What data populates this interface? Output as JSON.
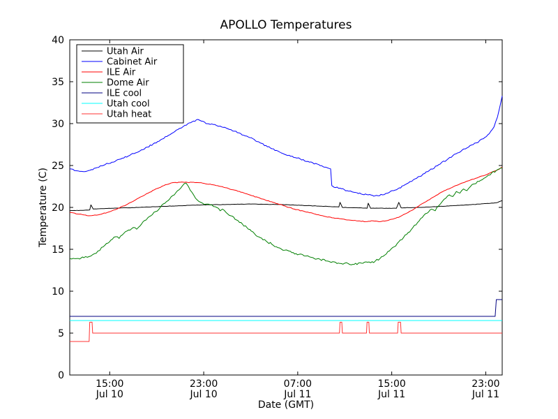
{
  "figure": {
    "title": "APOLLO Temperatures",
    "xlabel": "Date (GMT)",
    "ylabel": "Temperature (C)"
  },
  "chart_data": {
    "type": "line",
    "title": "APOLLO Temperatures",
    "xlabel": "Date (GMT)",
    "ylabel": "Temperature (C)",
    "x_unit": "hours since Jul 10 00:00 GMT",
    "xlim": [
      11.6,
      48.4
    ],
    "ylim": [
      0,
      40
    ],
    "yticks": [
      0,
      5,
      10,
      15,
      20,
      25,
      30,
      35,
      40
    ],
    "xticks": [
      {
        "value": 15,
        "label_time": "15:00",
        "label_date": "Jul 10"
      },
      {
        "value": 23,
        "label_time": "23:00",
        "label_date": "Jul 10"
      },
      {
        "value": 31,
        "label_time": "07:00",
        "label_date": "Jul 11"
      },
      {
        "value": 39,
        "label_time": "15:00",
        "label_date": "Jul 11"
      },
      {
        "value": 47,
        "label_time": "23:00",
        "label_date": "Jul 11"
      }
    ],
    "grid": false,
    "legend_position": "upper left",
    "series": [
      {
        "name": "Utah Air",
        "color": "#000000",
        "noise": 0.02,
        "points": [
          [
            11.6,
            19.6
          ],
          [
            12.6,
            19.65
          ],
          [
            13.3,
            19.7
          ],
          [
            13.4,
            20.3
          ],
          [
            13.6,
            19.8
          ],
          [
            14.4,
            19.85
          ],
          [
            15.2,
            19.9
          ],
          [
            17.5,
            20.0
          ],
          [
            20.0,
            20.15
          ],
          [
            22.9,
            20.3
          ],
          [
            25.0,
            20.35
          ],
          [
            27.0,
            20.4
          ],
          [
            29.4,
            20.35
          ],
          [
            31.2,
            20.25
          ],
          [
            33.0,
            20.15
          ],
          [
            34.5,
            20.05
          ],
          [
            34.6,
            20.6
          ],
          [
            34.8,
            20.0
          ],
          [
            36.4,
            19.95
          ],
          [
            36.9,
            19.9
          ],
          [
            37.0,
            20.5
          ],
          [
            37.2,
            19.9
          ],
          [
            39.4,
            19.9
          ],
          [
            39.6,
            20.6
          ],
          [
            39.8,
            19.95
          ],
          [
            41.3,
            20.0
          ],
          [
            43.6,
            20.15
          ],
          [
            46.0,
            20.35
          ],
          [
            47.9,
            20.55
          ],
          [
            48.4,
            20.8
          ]
        ]
      },
      {
        "name": "Cabinet Air",
        "color": "#0000ff",
        "noise": 0.09,
        "points": [
          [
            11.6,
            24.6
          ],
          [
            12.0,
            24.4
          ],
          [
            12.6,
            24.3
          ],
          [
            13.2,
            24.4
          ],
          [
            13.8,
            24.7
          ],
          [
            14.6,
            25.1
          ],
          [
            15.2,
            25.4
          ],
          [
            16.2,
            25.9
          ],
          [
            17.2,
            26.5
          ],
          [
            18.2,
            27.2
          ],
          [
            19.2,
            27.9
          ],
          [
            20.0,
            28.6
          ],
          [
            20.8,
            29.3
          ],
          [
            21.4,
            29.8
          ],
          [
            22.0,
            30.2
          ],
          [
            22.5,
            30.5
          ],
          [
            22.8,
            30.3
          ],
          [
            23.2,
            30.0
          ],
          [
            23.8,
            29.9
          ],
          [
            24.4,
            29.7
          ],
          [
            25.2,
            29.3
          ],
          [
            26.0,
            28.9
          ],
          [
            26.8,
            28.4
          ],
          [
            27.8,
            27.7
          ],
          [
            28.8,
            27.0
          ],
          [
            29.6,
            26.5
          ],
          [
            30.4,
            26.1
          ],
          [
            31.2,
            25.8
          ],
          [
            32.0,
            25.4
          ],
          [
            32.8,
            25.1
          ],
          [
            33.4,
            24.8
          ],
          [
            33.8,
            24.6
          ],
          [
            33.9,
            22.6
          ],
          [
            34.1,
            22.4
          ],
          [
            34.6,
            22.3
          ],
          [
            35.2,
            22.0
          ],
          [
            35.8,
            21.8
          ],
          [
            36.4,
            21.6
          ],
          [
            37.0,
            21.5
          ],
          [
            37.6,
            21.4
          ],
          [
            38.2,
            21.5
          ],
          [
            38.8,
            21.8
          ],
          [
            39.4,
            22.1
          ],
          [
            40.0,
            22.6
          ],
          [
            40.7,
            23.1
          ],
          [
            41.4,
            23.7
          ],
          [
            42.2,
            24.4
          ],
          [
            43.0,
            25.1
          ],
          [
            43.8,
            25.8
          ],
          [
            44.6,
            26.5
          ],
          [
            45.4,
            27.1
          ],
          [
            46.2,
            27.7
          ],
          [
            46.8,
            28.2
          ],
          [
            47.3,
            28.8
          ],
          [
            47.7,
            29.6
          ],
          [
            48.0,
            30.8
          ],
          [
            48.2,
            32.0
          ],
          [
            48.4,
            33.3
          ]
        ]
      },
      {
        "name": "ILE Air",
        "color": "#ff0000",
        "noise": 0.04,
        "points": [
          [
            11.6,
            19.4
          ],
          [
            12.4,
            19.2
          ],
          [
            13.2,
            19.0
          ],
          [
            14.0,
            19.1
          ],
          [
            14.8,
            19.4
          ],
          [
            15.6,
            19.8
          ],
          [
            16.4,
            20.3
          ],
          [
            17.2,
            20.9
          ],
          [
            18.0,
            21.5
          ],
          [
            18.8,
            22.1
          ],
          [
            19.6,
            22.6
          ],
          [
            20.2,
            22.9
          ],
          [
            21.0,
            23.0
          ],
          [
            22.0,
            23.0
          ],
          [
            22.9,
            22.9
          ],
          [
            23.8,
            22.7
          ],
          [
            24.7,
            22.4
          ],
          [
            25.5,
            22.1
          ],
          [
            26.3,
            21.8
          ],
          [
            27.1,
            21.4
          ],
          [
            28.0,
            21.0
          ],
          [
            28.9,
            20.6
          ],
          [
            29.8,
            20.2
          ],
          [
            30.7,
            19.8
          ],
          [
            31.6,
            19.5
          ],
          [
            32.5,
            19.2
          ],
          [
            33.4,
            18.9
          ],
          [
            34.3,
            18.7
          ],
          [
            35.2,
            18.5
          ],
          [
            36.0,
            18.4
          ],
          [
            36.8,
            18.3
          ],
          [
            37.4,
            18.4
          ],
          [
            37.9,
            18.3
          ],
          [
            38.5,
            18.4
          ],
          [
            39.1,
            18.6
          ],
          [
            39.7,
            18.9
          ],
          [
            40.4,
            19.4
          ],
          [
            41.1,
            20.0
          ],
          [
            41.8,
            20.6
          ],
          [
            42.5,
            21.2
          ],
          [
            43.2,
            21.8
          ],
          [
            44.0,
            22.3
          ],
          [
            44.8,
            22.8
          ],
          [
            45.6,
            23.2
          ],
          [
            46.4,
            23.6
          ],
          [
            47.2,
            24.0
          ],
          [
            47.9,
            24.4
          ],
          [
            48.4,
            24.8
          ]
        ]
      },
      {
        "name": "Dome Air",
        "color": "#007f00",
        "noise": 0.12,
        "points": [
          [
            11.6,
            13.9
          ],
          [
            12.2,
            13.9
          ],
          [
            12.8,
            14.0
          ],
          [
            13.4,
            14.2
          ],
          [
            14.0,
            14.8
          ],
          [
            14.6,
            15.5
          ],
          [
            15.1,
            16.1
          ],
          [
            15.5,
            16.5
          ],
          [
            15.8,
            16.3
          ],
          [
            16.2,
            16.9
          ],
          [
            16.6,
            17.3
          ],
          [
            17.0,
            17.6
          ],
          [
            17.3,
            17.4
          ],
          [
            17.7,
            18.0
          ],
          [
            18.1,
            18.5
          ],
          [
            18.5,
            19.0
          ],
          [
            18.9,
            19.5
          ],
          [
            19.3,
            20.0
          ],
          [
            19.7,
            20.5
          ],
          [
            20.1,
            21.0
          ],
          [
            20.5,
            21.5
          ],
          [
            20.9,
            22.1
          ],
          [
            21.2,
            22.6
          ],
          [
            21.5,
            22.9
          ],
          [
            21.7,
            22.5
          ],
          [
            22.0,
            21.8
          ],
          [
            22.3,
            21.1
          ],
          [
            22.6,
            20.7
          ],
          [
            22.9,
            20.5
          ],
          [
            23.3,
            20.4
          ],
          [
            23.7,
            20.3
          ],
          [
            24.1,
            20.0
          ],
          [
            24.4,
            19.6
          ],
          [
            24.6,
            19.8
          ],
          [
            24.9,
            19.4
          ],
          [
            25.3,
            19.0
          ],
          [
            25.8,
            18.5
          ],
          [
            26.3,
            18.0
          ],
          [
            26.8,
            17.4
          ],
          [
            27.3,
            16.9
          ],
          [
            27.8,
            16.4
          ],
          [
            28.3,
            16.0
          ],
          [
            28.8,
            15.6
          ],
          [
            29.3,
            15.2
          ],
          [
            29.9,
            14.9
          ],
          [
            30.5,
            14.6
          ],
          [
            31.1,
            14.4
          ],
          [
            31.7,
            14.2
          ],
          [
            32.3,
            14.0
          ],
          [
            32.9,
            13.8
          ],
          [
            33.5,
            13.6
          ],
          [
            34.1,
            13.5
          ],
          [
            34.7,
            13.3
          ],
          [
            35.3,
            13.3
          ],
          [
            35.8,
            13.2
          ],
          [
            36.3,
            13.4
          ],
          [
            36.8,
            13.5
          ],
          [
            37.2,
            13.4
          ],
          [
            37.6,
            13.6
          ],
          [
            38.0,
            13.9
          ],
          [
            38.4,
            14.3
          ],
          [
            38.8,
            14.8
          ],
          [
            39.2,
            15.3
          ],
          [
            39.6,
            15.9
          ],
          [
            40.0,
            16.4
          ],
          [
            40.4,
            17.0
          ],
          [
            40.8,
            17.6
          ],
          [
            41.2,
            18.2
          ],
          [
            41.6,
            18.8
          ],
          [
            42.0,
            19.3
          ],
          [
            42.4,
            19.8
          ],
          [
            42.7,
            19.6
          ],
          [
            43.0,
            20.2
          ],
          [
            43.3,
            20.7
          ],
          [
            43.6,
            21.1
          ],
          [
            43.9,
            21.5
          ],
          [
            44.2,
            21.3
          ],
          [
            44.5,
            21.9
          ],
          [
            44.8,
            21.7
          ],
          [
            45.1,
            22.2
          ],
          [
            45.4,
            22.0
          ],
          [
            45.7,
            22.5
          ],
          [
            46.0,
            22.8
          ],
          [
            46.3,
            23.1
          ],
          [
            46.7,
            23.3
          ],
          [
            47.1,
            23.7
          ],
          [
            47.5,
            24.1
          ],
          [
            47.9,
            24.4
          ],
          [
            48.4,
            24.7
          ]
        ]
      },
      {
        "name": "ILE cool",
        "color": "#000080",
        "noise": 0,
        "points": [
          [
            11.6,
            7.0
          ],
          [
            47.8,
            7.0
          ],
          [
            47.9,
            9.0
          ],
          [
            48.4,
            9.0
          ]
        ]
      },
      {
        "name": "Utah cool",
        "color": "#00ffff",
        "noise": 0,
        "points": [
          [
            11.6,
            6.5
          ],
          [
            48.4,
            6.5
          ]
        ]
      },
      {
        "name": "Utah heat",
        "color": "#ff3333",
        "noise": 0,
        "points": [
          [
            11.6,
            4.0
          ],
          [
            13.25,
            4.0
          ],
          [
            13.3,
            6.3
          ],
          [
            13.5,
            6.3
          ],
          [
            13.55,
            5.0
          ],
          [
            34.55,
            5.0
          ],
          [
            34.6,
            6.3
          ],
          [
            34.75,
            6.3
          ],
          [
            34.8,
            5.0
          ],
          [
            36.85,
            5.0
          ],
          [
            36.9,
            6.3
          ],
          [
            37.05,
            6.3
          ],
          [
            37.1,
            5.0
          ],
          [
            39.5,
            5.0
          ],
          [
            39.55,
            6.3
          ],
          [
            39.75,
            6.3
          ],
          [
            39.8,
            5.0
          ],
          [
            48.4,
            5.0
          ]
        ]
      }
    ]
  }
}
